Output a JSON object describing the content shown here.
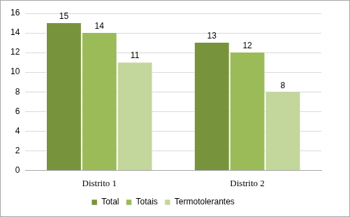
{
  "chart_data": {
    "type": "bar",
    "categories": [
      "Distrito 1",
      "Distrito 2"
    ],
    "series": [
      {
        "name": "Total",
        "color": "#77933c",
        "values": [
          15,
          13
        ]
      },
      {
        "name": "Totais",
        "color": "#9bbb59",
        "values": [
          14,
          12
        ]
      },
      {
        "name": "Termotolerantes",
        "color": "#c3d69b",
        "values": [
          11,
          8
        ]
      }
    ],
    "ylim": [
      0,
      16
    ],
    "yticks": [
      0,
      2,
      4,
      6,
      8,
      10,
      12,
      14,
      16
    ],
    "grid": true,
    "legend": "bottom",
    "data_labels": true
  }
}
